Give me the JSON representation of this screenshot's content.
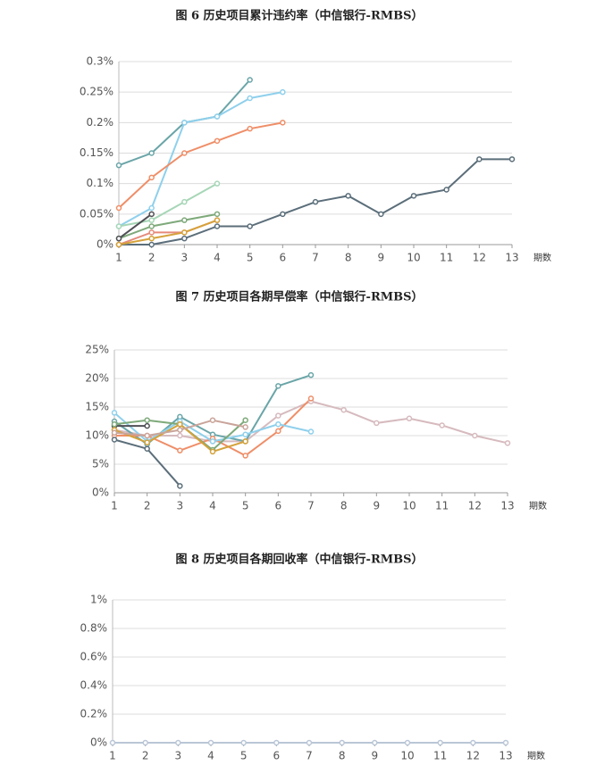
{
  "chart_data": [
    {
      "type": "line",
      "title": "图 6 历史项目累计违约率（中信银行-RMBS）",
      "x_label": "期数",
      "x": [
        1,
        2,
        3,
        4,
        5,
        6,
        7,
        8,
        9,
        10,
        11,
        12,
        13
      ],
      "xlim": [
        1,
        13
      ],
      "xticks": [
        1,
        2,
        3,
        4,
        5,
        6,
        7,
        8,
        9,
        10,
        11,
        12,
        13
      ],
      "ylim": [
        0,
        0.3
      ],
      "yticks": [
        {
          "value": 0,
          "label": "0%"
        },
        {
          "value": 0.05,
          "label": "0.05%"
        },
        {
          "value": 0.1,
          "label": "0.1%"
        },
        {
          "value": 0.15,
          "label": "0.15%"
        },
        {
          "value": 0.2,
          "label": "0.2%"
        },
        {
          "value": 0.25,
          "label": "0.25%"
        },
        {
          "value": 0.3,
          "label": "0.3%"
        }
      ],
      "grid": true,
      "series": [
        {
          "color": "#5b6e7a",
          "values": [
            0,
            0,
            0.01,
            0.03,
            0.03,
            0.05,
            0.07,
            0.08,
            0.05,
            0.08,
            0.09,
            0.14,
            0.14
          ]
        },
        {
          "color": "#6aa5a8",
          "values": [
            0.13,
            0.15,
            0.2,
            0.21,
            0.27,
            null,
            null,
            null,
            null,
            null,
            null,
            null,
            null
          ]
        },
        {
          "color": "#8fd0ec",
          "values": [
            0.03,
            0.06,
            0.2,
            0.21,
            0.24,
            0.25,
            null,
            null,
            null,
            null,
            null,
            null,
            null
          ]
        },
        {
          "color": "#ef8e68",
          "values": [
            0.06,
            0.11,
            0.15,
            0.17,
            0.19,
            0.2,
            null,
            null,
            null,
            null,
            null,
            null,
            null
          ]
        },
        {
          "color": "#a7d6b7",
          "values": [
            0.03,
            0.04,
            0.07,
            0.1,
            null,
            null,
            null,
            null,
            null,
            null,
            null,
            null,
            null
          ]
        },
        {
          "color": "#7ea97a",
          "values": [
            0.01,
            0.03,
            0.04,
            0.05,
            null,
            null,
            null,
            null,
            null,
            null,
            null,
            null,
            null
          ]
        },
        {
          "color": "#4f4f55",
          "values": [
            0.01,
            0.05,
            null,
            null,
            null,
            null,
            null,
            null,
            null,
            null,
            null,
            null,
            null
          ]
        },
        {
          "color": "#e58a7a",
          "values": [
            0,
            0.02,
            0.02,
            0.04,
            null,
            null,
            null,
            null,
            null,
            null,
            null,
            null,
            null
          ]
        },
        {
          "color": "#d5a23a",
          "values": [
            0,
            0.01,
            0.02,
            0.04,
            null,
            null,
            null,
            null,
            null,
            null,
            null,
            null,
            null
          ]
        }
      ]
    },
    {
      "type": "line",
      "title": "图 7 历史项目各期早偿率（中信银行-RMBS）",
      "x_label": "期数",
      "x": [
        1,
        2,
        3,
        4,
        5,
        6,
        7,
        8,
        9,
        10,
        11,
        12,
        13
      ],
      "xlim": [
        1,
        13
      ],
      "xticks": [
        1,
        2,
        3,
        4,
        5,
        6,
        7,
        8,
        9,
        10,
        11,
        12,
        13
      ],
      "ylim": [
        0,
        25
      ],
      "yticks": [
        {
          "value": 0,
          "label": "0%"
        },
        {
          "value": 5,
          "label": "5%"
        },
        {
          "value": 10,
          "label": "10%"
        },
        {
          "value": 15,
          "label": "15%"
        },
        {
          "value": 20,
          "label": "20%"
        },
        {
          "value": 25,
          "label": "25%"
        }
      ],
      "grid": true,
      "series": [
        {
          "color": "#d6babe",
          "values": [
            11,
            10,
            10,
            9,
            9,
            13.5,
            16,
            14.5,
            12.2,
            13,
            11.8,
            10,
            8.7
          ]
        },
        {
          "color": "#6aa5a8",
          "values": [
            12.5,
            8.5,
            13.3,
            10.2,
            9,
            18.7,
            20.6,
            null,
            null,
            null,
            null,
            null,
            null
          ]
        },
        {
          "color": "#ef8e68",
          "values": [
            10,
            10,
            7.4,
            9.5,
            6.5,
            10.8,
            16.5,
            null,
            null,
            null,
            null,
            null,
            null
          ]
        },
        {
          "color": "#8fd0ec",
          "values": [
            14,
            9,
            12.5,
            9,
            10.2,
            12,
            10.7,
            null,
            null,
            null,
            null,
            null,
            null
          ]
        },
        {
          "color": "#5b6e7a",
          "values": [
            9.3,
            7.7,
            1.2,
            null,
            null,
            null,
            null,
            null,
            null,
            null,
            null,
            null,
            null
          ]
        },
        {
          "color": "#4f4f55",
          "values": [
            11.7,
            11.7,
            null,
            null,
            null,
            null,
            null,
            null,
            null,
            null,
            null,
            null,
            null
          ]
        },
        {
          "color": "#7ea97a",
          "values": [
            12,
            12.7,
            12,
            7.5,
            12.7,
            null,
            null,
            null,
            null,
            null,
            null,
            null,
            null
          ]
        },
        {
          "color": "#d5a23a",
          "values": [
            11,
            8.8,
            12,
            7.2,
            9,
            null,
            null,
            null,
            null,
            null,
            null,
            null,
            null
          ]
        },
        {
          "color": "#c9a49a",
          "values": [
            10.5,
            10,
            11,
            12.7,
            11.5,
            null,
            null,
            null,
            null,
            null,
            null,
            null,
            null
          ]
        }
      ]
    },
    {
      "type": "line",
      "title": "图 8 历史项目各期回收率（中信银行-RMBS）",
      "x_label": "期数",
      "x": [
        1,
        2,
        3,
        4,
        5,
        6,
        7,
        8,
        9,
        10,
        11,
        12,
        13
      ],
      "xlim": [
        1,
        13
      ],
      "xticks": [
        1,
        2,
        3,
        4,
        5,
        6,
        7,
        8,
        9,
        10,
        11,
        12,
        13
      ],
      "ylim": [
        0,
        1
      ],
      "yticks": [
        {
          "value": 0,
          "label": "0%"
        },
        {
          "value": 0.2,
          "label": "0.2%"
        },
        {
          "value": 0.4,
          "label": "0.4%"
        },
        {
          "value": 0.6,
          "label": "0.6%"
        },
        {
          "value": 0.8,
          "label": "0.8%"
        },
        {
          "value": 1,
          "label": "1%"
        }
      ],
      "grid": true,
      "series": [
        {
          "color": "#b9c6d6",
          "values": [
            0,
            0,
            0,
            0,
            0,
            0,
            0,
            0,
            0,
            0,
            0,
            0,
            0
          ]
        }
      ]
    }
  ]
}
